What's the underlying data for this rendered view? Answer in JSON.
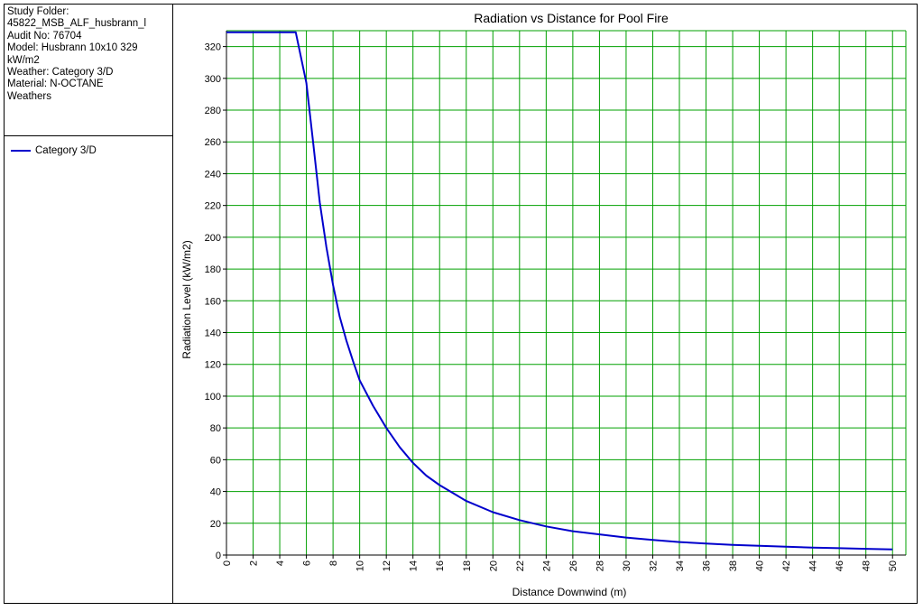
{
  "info": {
    "lines": [
      "Study Folder:",
      "45822_MSB_ALF_husbrann_l",
      "Audit No: 76704",
      "Model: Husbrann 10x10 329",
      "kW/m2",
      "Weather: Category 3/D",
      "Material: N-OCTANE",
      "Weathers"
    ]
  },
  "colors": {
    "grid": "#00a000",
    "series": "#0000cc",
    "axis": "#000000"
  },
  "chart_data": {
    "type": "line",
    "title": "Radiation vs Distance for Pool Fire",
    "xlabel": "Distance Downwind (m)",
    "ylabel": "Radiation Level (kW/m2)",
    "xlim": [
      0,
      51
    ],
    "ylim": [
      0,
      330
    ],
    "xticks": [
      0,
      2,
      4,
      6,
      8,
      10,
      12,
      14,
      16,
      18,
      20,
      22,
      24,
      26,
      28,
      30,
      32,
      34,
      36,
      38,
      40,
      42,
      44,
      46,
      48,
      50
    ],
    "yticks": [
      0,
      20,
      40,
      60,
      80,
      100,
      120,
      140,
      160,
      180,
      200,
      220,
      240,
      260,
      280,
      300,
      320
    ],
    "grid": true,
    "legend_position": "left-panel",
    "series": [
      {
        "name": "Category 3/D",
        "x": [
          0,
          5.2,
          6,
          6.5,
          7,
          7.5,
          8,
          8.5,
          9,
          9.5,
          10,
          11,
          12,
          13,
          14,
          15,
          16,
          18,
          20,
          22,
          24,
          26,
          28,
          30,
          32,
          34,
          36,
          38,
          40,
          42,
          44,
          46,
          48,
          50
        ],
        "y": [
          329,
          329,
          297,
          260,
          222,
          194,
          170,
          150,
          135,
          122,
          110,
          94,
          80,
          68,
          58,
          50,
          44,
          34,
          27,
          22,
          18,
          15,
          13,
          11,
          9.5,
          8.2,
          7.2,
          6.4,
          5.8,
          5.2,
          4.7,
          4.3,
          3.9,
          3.5
        ]
      }
    ]
  }
}
